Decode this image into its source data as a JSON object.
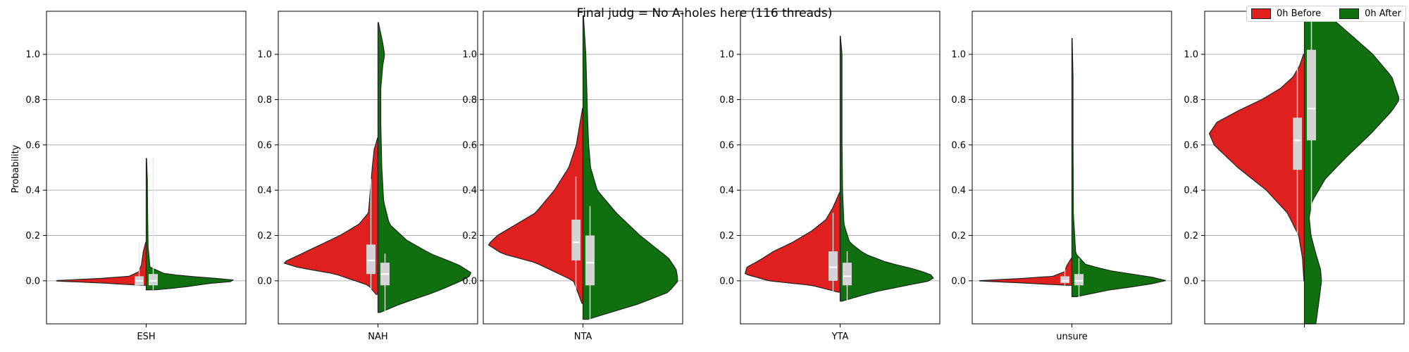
{
  "chart_data": {
    "type": "violin",
    "title": "Final judg = No A-holes here (116 threads)",
    "ylabel": "Probability",
    "ylim": [
      -0.19,
      1.19
    ],
    "yticks": [
      "0.0",
      "0.2",
      "0.4",
      "0.6",
      "0.8",
      "1.0"
    ],
    "grid": "y",
    "legend": {
      "placement": "top-right",
      "entries": [
        {
          "label": "0h Before",
          "color": "#e01f1f"
        },
        {
          "label": "0h After",
          "color": "#107010"
        }
      ]
    },
    "panels": [
      {
        "category": "ESH",
        "before": {
          "ymin": -0.02,
          "ymax": 0.17,
          "q1": -0.02,
          "median": 0.0,
          "q3": 0.02,
          "min": -0.02,
          "max": 0.17,
          "density": [
            [
              -0.02,
              0.05
            ],
            [
              -0.01,
              0.45
            ],
            [
              0.0,
              1.0
            ],
            [
              0.01,
              0.5
            ],
            [
              0.02,
              0.18
            ],
            [
              0.04,
              0.08
            ],
            [
              0.07,
              0.05
            ],
            [
              0.1,
              0.04
            ],
            [
              0.13,
              0.03
            ],
            [
              0.17,
              0.005
            ]
          ]
        },
        "after": {
          "ymin": -0.04,
          "ymax": 0.54,
          "q1": -0.02,
          "median": 0.0,
          "q3": 0.03,
          "min": -0.04,
          "max": 0.54,
          "density": [
            [
              -0.04,
              0.1
            ],
            [
              -0.03,
              0.35
            ],
            [
              -0.01,
              0.7
            ],
            [
              0.0,
              1.0
            ],
            [
              0.01,
              0.75
            ],
            [
              0.02,
              0.45
            ],
            [
              0.03,
              0.2
            ],
            [
              0.06,
              0.04
            ],
            [
              0.15,
              0.02
            ],
            [
              0.3,
              0.015
            ],
            [
              0.45,
              0.012
            ],
            [
              0.54,
              0.004
            ]
          ]
        }
      },
      {
        "category": "NAH",
        "before": {
          "ymin": -0.06,
          "ymax": 0.63,
          "q1": 0.03,
          "median": 0.09,
          "q3": 0.16,
          "min": -0.06,
          "max": 0.45,
          "density": [
            [
              -0.06,
              0.02
            ],
            [
              -0.02,
              0.1
            ],
            [
              0.03,
              0.45
            ],
            [
              0.06,
              0.85
            ],
            [
              0.08,
              1.0
            ],
            [
              0.11,
              0.85
            ],
            [
              0.15,
              0.65
            ],
            [
              0.2,
              0.4
            ],
            [
              0.25,
              0.2
            ],
            [
              0.3,
              0.1
            ],
            [
              0.4,
              0.08
            ],
            [
              0.5,
              0.06
            ],
            [
              0.58,
              0.04
            ],
            [
              0.63,
              0.005
            ]
          ]
        },
        "after": {
          "ymin": -0.14,
          "ymax": 1.14,
          "q1": -0.02,
          "median": 0.03,
          "q3": 0.08,
          "min": -0.14,
          "max": 0.12,
          "density": [
            [
              -0.14,
              0.02
            ],
            [
              -0.1,
              0.25
            ],
            [
              -0.05,
              0.6
            ],
            [
              0.0,
              0.88
            ],
            [
              0.03,
              1.0
            ],
            [
              0.07,
              0.85
            ],
            [
              0.12,
              0.55
            ],
            [
              0.18,
              0.3
            ],
            [
              0.25,
              0.12
            ],
            [
              0.35,
              0.06
            ],
            [
              0.5,
              0.04
            ],
            [
              0.7,
              0.03
            ],
            [
              0.85,
              0.03
            ],
            [
              0.95,
              0.05
            ],
            [
              1.0,
              0.07
            ],
            [
              1.05,
              0.05
            ],
            [
              1.14,
              0.005
            ]
          ]
        }
      },
      {
        "category": "NTA",
        "before": {
          "ymin": -0.1,
          "ymax": 0.76,
          "q1": 0.09,
          "median": 0.17,
          "q3": 0.27,
          "min": -0.1,
          "max": 0.46,
          "density": [
            [
              -0.1,
              0.01
            ],
            [
              0.0,
              0.1
            ],
            [
              0.08,
              0.5
            ],
            [
              0.12,
              0.85
            ],
            [
              0.16,
              1.0
            ],
            [
              0.2,
              0.9
            ],
            [
              0.25,
              0.7
            ],
            [
              0.3,
              0.5
            ],
            [
              0.4,
              0.3
            ],
            [
              0.5,
              0.15
            ],
            [
              0.6,
              0.07
            ],
            [
              0.7,
              0.03
            ],
            [
              0.76,
              0.005
            ]
          ]
        },
        "after": {
          "ymin": -0.17,
          "ymax": 1.17,
          "q1": -0.02,
          "median": 0.08,
          "q3": 0.2,
          "min": -0.17,
          "max": 0.33,
          "density": [
            [
              -0.17,
              0.05
            ],
            [
              -0.1,
              0.6
            ],
            [
              -0.05,
              0.9
            ],
            [
              0.0,
              1.0
            ],
            [
              0.05,
              0.98
            ],
            [
              0.1,
              0.9
            ],
            [
              0.15,
              0.75
            ],
            [
              0.2,
              0.6
            ],
            [
              0.3,
              0.35
            ],
            [
              0.4,
              0.15
            ],
            [
              0.5,
              0.08
            ],
            [
              0.6,
              0.06
            ],
            [
              0.7,
              0.05
            ],
            [
              0.85,
              0.04
            ],
            [
              1.0,
              0.03
            ],
            [
              1.17,
              0.005
            ]
          ]
        }
      },
      {
        "category": "YTA",
        "before": {
          "ymin": -0.05,
          "ymax": 0.39,
          "q1": 0.0,
          "median": 0.06,
          "q3": 0.13,
          "min": -0.05,
          "max": 0.3,
          "density": [
            [
              -0.05,
              0.02
            ],
            [
              -0.02,
              0.3
            ],
            [
              0.0,
              0.75
            ],
            [
              0.03,
              1.0
            ],
            [
              0.06,
              0.98
            ],
            [
              0.09,
              0.85
            ],
            [
              0.13,
              0.7
            ],
            [
              0.17,
              0.5
            ],
            [
              0.22,
              0.3
            ],
            [
              0.27,
              0.15
            ],
            [
              0.32,
              0.08
            ],
            [
              0.39,
              0.005
            ]
          ]
        },
        "after": {
          "ymin": -0.09,
          "ymax": 1.08,
          "q1": -0.02,
          "median": 0.02,
          "q3": 0.08,
          "min": -0.09,
          "max": 0.13,
          "density": [
            [
              -0.09,
              0.02
            ],
            [
              -0.05,
              0.35
            ],
            [
              -0.02,
              0.7
            ],
            [
              0.0,
              0.95
            ],
            [
              0.02,
              1.0
            ],
            [
              0.05,
              0.8
            ],
            [
              0.08,
              0.5
            ],
            [
              0.12,
              0.25
            ],
            [
              0.17,
              0.1
            ],
            [
              0.25,
              0.04
            ],
            [
              0.4,
              0.025
            ],
            [
              0.6,
              0.02
            ],
            [
              0.8,
              0.02
            ],
            [
              1.0,
              0.02
            ],
            [
              1.08,
              0.003
            ]
          ]
        }
      },
      {
        "category": "unsure",
        "before": {
          "ymin": -0.02,
          "ymax": 0.1,
          "q1": -0.01,
          "median": 0.0,
          "q3": 0.02,
          "min": -0.02,
          "max": 0.1,
          "density": [
            [
              -0.02,
              0.05
            ],
            [
              -0.01,
              0.5
            ],
            [
              0.0,
              1.0
            ],
            [
              0.01,
              0.55
            ],
            [
              0.02,
              0.2
            ],
            [
              0.04,
              0.08
            ],
            [
              0.07,
              0.05
            ],
            [
              0.1,
              0.005
            ]
          ]
        },
        "after": {
          "ymin": -0.07,
          "ymax": 1.07,
          "q1": -0.02,
          "median": 0.0,
          "q3": 0.03,
          "min": -0.07,
          "max": 0.1,
          "density": [
            [
              -0.07,
              0.05
            ],
            [
              -0.04,
              0.4
            ],
            [
              -0.02,
              0.75
            ],
            [
              0.0,
              1.0
            ],
            [
              0.02,
              0.8
            ],
            [
              0.04,
              0.45
            ],
            [
              0.07,
              0.15
            ],
            [
              0.12,
              0.04
            ],
            [
              0.3,
              0.015
            ],
            [
              0.6,
              0.012
            ],
            [
              0.9,
              0.012
            ],
            [
              1.07,
              0.003
            ]
          ]
        }
      },
      {
        "category": "",
        "before": {
          "ymin": 0.0,
          "ymax": 1.0,
          "q1": 0.49,
          "median": 0.62,
          "q3": 0.72,
          "min": 0.2,
          "max": 1.0,
          "density": [
            [
              0.0,
              0.005
            ],
            [
              0.1,
              0.02
            ],
            [
              0.2,
              0.06
            ],
            [
              0.3,
              0.18
            ],
            [
              0.4,
              0.4
            ],
            [
              0.5,
              0.7
            ],
            [
              0.6,
              0.95
            ],
            [
              0.65,
              1.0
            ],
            [
              0.7,
              0.92
            ],
            [
              0.75,
              0.7
            ],
            [
              0.8,
              0.45
            ],
            [
              0.85,
              0.25
            ],
            [
              0.9,
              0.12
            ],
            [
              0.95,
              0.05
            ],
            [
              1.0,
              0.01
            ]
          ]
        },
        "after": {
          "ymin": -0.19,
          "ymax": 1.19,
          "q1": 0.62,
          "median": 0.76,
          "q3": 1.02,
          "min": 0.3,
          "max": 1.19,
          "density": [
            [
              -0.19,
              0.12
            ],
            [
              -0.1,
              0.15
            ],
            [
              0.0,
              0.18
            ],
            [
              0.05,
              0.17
            ],
            [
              0.12,
              0.12
            ],
            [
              0.2,
              0.07
            ],
            [
              0.28,
              0.05
            ],
            [
              0.35,
              0.08
            ],
            [
              0.45,
              0.22
            ],
            [
              0.55,
              0.45
            ],
            [
              0.65,
              0.7
            ],
            [
              0.75,
              0.92
            ],
            [
              0.8,
              1.0
            ],
            [
              0.9,
              0.92
            ],
            [
              1.0,
              0.72
            ],
            [
              1.1,
              0.45
            ],
            [
              1.19,
              0.2
            ]
          ]
        }
      }
    ]
  }
}
